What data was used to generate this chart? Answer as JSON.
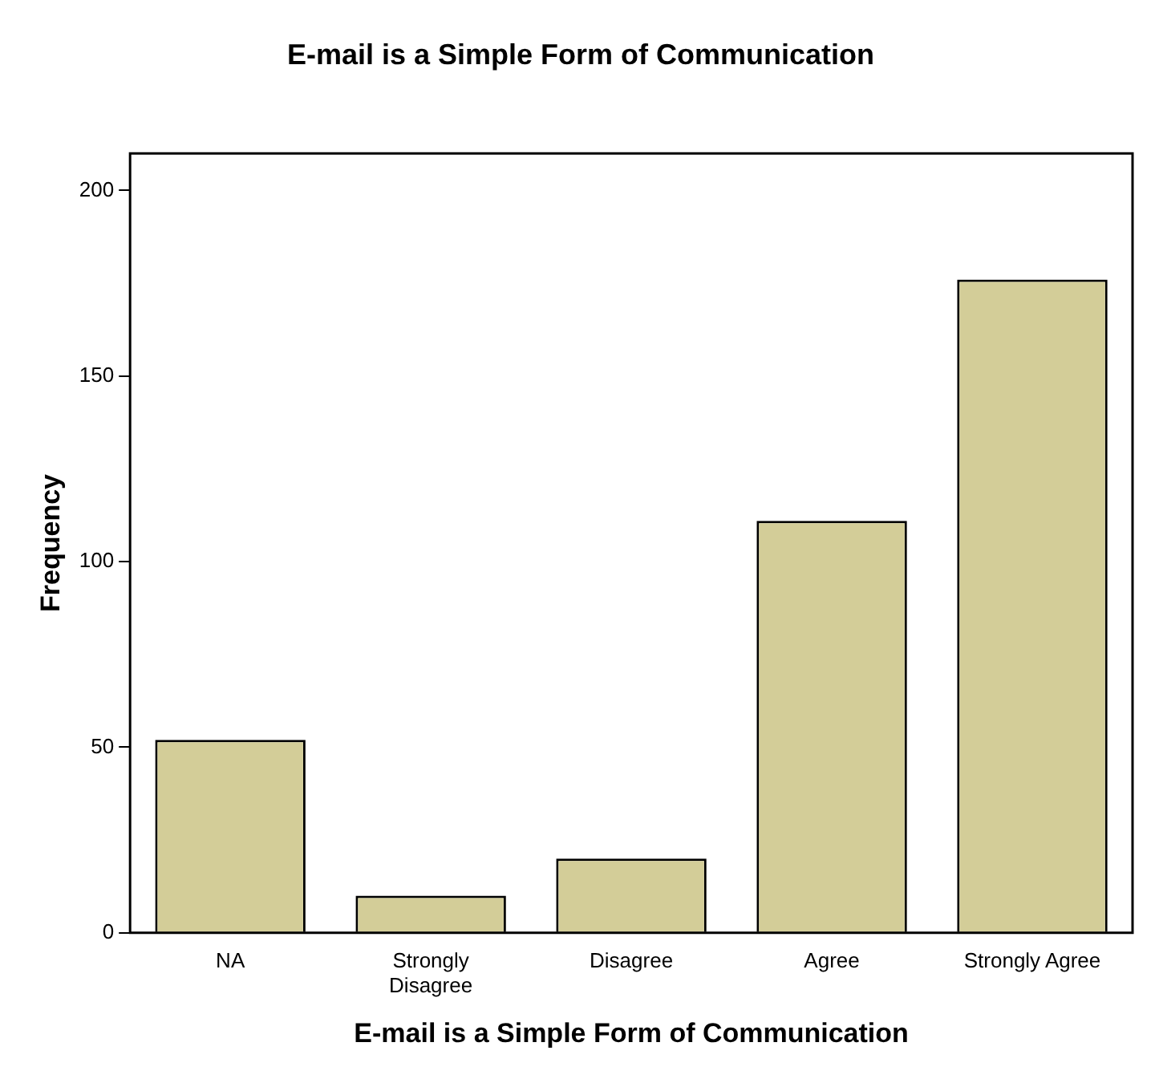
{
  "chart_data": {
    "type": "bar",
    "title": "E-mail is a Simple Form of Communication",
    "xlabel": "E-mail is a Simple Form of Communication",
    "ylabel": "Frequency",
    "categories": [
      "NA",
      "Strongly Disagree",
      "Disagree",
      "Agree",
      "Strongly Agree"
    ],
    "values": [
      52,
      10,
      20,
      111,
      176
    ],
    "color": "#d3cd98",
    "ylim": [
      0,
      210
    ],
    "yticks": [
      0,
      50,
      100,
      150,
      200
    ],
    "grid": false,
    "legend": false
  }
}
